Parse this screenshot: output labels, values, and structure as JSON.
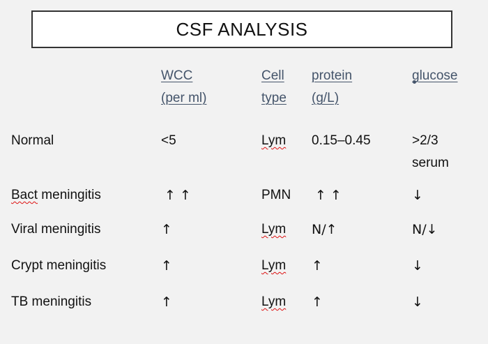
{
  "title": "CSF ANALYSIS",
  "headers": {
    "wcc_line1": "WCC",
    "wcc_line2": "(per ml)",
    "cell_line1": "Cell",
    "cell_line2": "type",
    "protein_line1": "protein",
    "protein_line2": "(g/L)",
    "glucose": "glucose"
  },
  "rows": [
    {
      "label": "Normal",
      "wcc": "<5",
      "cell": "Lym",
      "protein": "0.15–0.45",
      "glucose_line1": ">2/3",
      "glucose_line2": "serum"
    },
    {
      "label_squiggle": "Bact",
      "label_rest": " meningitis",
      "wcc": "↑ ↑",
      "cell": "PMN",
      "protein": "↑ ↑",
      "glucose": "↓"
    },
    {
      "label": "Viral meningitis",
      "wcc": "↑",
      "cell": "Lym",
      "protein": "N/↑",
      "glucose": "N/↓"
    },
    {
      "label": "Crypt meningitis",
      "wcc": "↑",
      "cell": "Lym",
      "protein": "↑",
      "glucose": "↓"
    },
    {
      "label": "TB meningitis",
      "wcc": "↑",
      "cell": "Lym",
      "protein": "↑",
      "glucose": "↓"
    }
  ]
}
